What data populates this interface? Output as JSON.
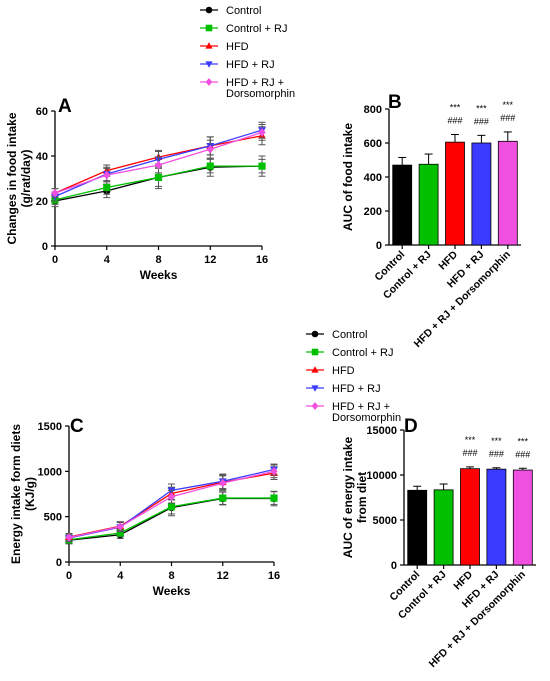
{
  "colors": {
    "control": "#000000",
    "control_rj": "#00c000",
    "hfd": "#ff0000",
    "hfd_rj": "#3b3bff",
    "hfd_rj_dorso": "#f050e0"
  },
  "legend_entries": [
    "Control",
    "Control + RJ",
    "HFD",
    "HFD + RJ",
    "HFD + RJ +",
    "Dorsomorphin"
  ],
  "chart_data": [
    {
      "panel": "A",
      "type": "line",
      "xlabel": "Weeks",
      "ylabel_lines": [
        "Changes in food intake",
        "(g/rat/day)"
      ],
      "x": [
        0,
        4,
        8,
        12,
        16
      ],
      "xlim": [
        0,
        16
      ],
      "ylim": [
        0,
        60
      ],
      "xticks": [
        "0",
        "4",
        "8",
        "12",
        "16"
      ],
      "yticks": [
        "0",
        "20",
        "40",
        "60"
      ],
      "series": [
        {
          "name": "Control",
          "values": [
            20,
            24.5,
            30.5,
            35,
            35.5
          ],
          "err": [
            2.5,
            3,
            5,
            4,
            4.5
          ]
        },
        {
          "name": "Control + RJ",
          "values": [
            20.5,
            26,
            30.5,
            35.5,
            35.5
          ],
          "err": [
            2,
            3,
            4,
            3,
            3
          ]
        },
        {
          "name": "HFD",
          "values": [
            23.5,
            33.5,
            39.5,
            44.5,
            49
          ],
          "err": [
            2,
            2.5,
            3,
            4,
            4
          ]
        },
        {
          "name": "HFD + RJ",
          "values": [
            22,
            32,
            38.5,
            44.5,
            51.5
          ],
          "err": [
            2,
            3,
            3.5,
            4,
            3.5
          ]
        },
        {
          "name": "HFD + RJ + Dorsomorphin",
          "values": [
            23.5,
            31.5,
            36,
            43,
            50.5
          ],
          "err": [
            2,
            3,
            3.5,
            4,
            3.5
          ]
        }
      ]
    },
    {
      "panel": "B",
      "type": "bar",
      "ylabel_lines": [
        "AUC of food intake"
      ],
      "categories": [
        "Control",
        "Control + RJ",
        "HFD",
        "HFD + RJ",
        "HFD + RJ + Dorsomorphin"
      ],
      "values": [
        470,
        475,
        605,
        600,
        610
      ],
      "err": [
        45,
        60,
        45,
        45,
        55
      ],
      "ylim": [
        0,
        800
      ],
      "yticks": [
        "0",
        "200",
        "400",
        "600",
        "800"
      ],
      "annotations": [
        {
          "category": "HFD",
          "lines": [
            "***",
            "###"
          ]
        },
        {
          "category": "HFD + RJ",
          "lines": [
            "***",
            "###"
          ]
        },
        {
          "category": "HFD + RJ + Dorsomorphin",
          "lines": [
            "***",
            "###"
          ]
        }
      ]
    },
    {
      "panel": "C",
      "type": "line",
      "xlabel": "Weeks",
      "ylabel_lines": [
        "Energy intake form diets",
        "(KJ/g)"
      ],
      "x": [
        0,
        4,
        8,
        12,
        16
      ],
      "xlim": [
        0,
        16
      ],
      "ylim": [
        0,
        1500
      ],
      "xticks": [
        "0",
        "4",
        "8",
        "12",
        "16"
      ],
      "yticks": [
        "0",
        "500",
        "1000",
        "1500"
      ],
      "series": [
        {
          "name": "Control",
          "values": [
            240,
            300,
            600,
            700,
            700
          ],
          "err": [
            40,
            40,
            90,
            70,
            80
          ]
        },
        {
          "name": "Control + RJ",
          "values": [
            245,
            320,
            610,
            705,
            705
          ],
          "err": [
            40,
            40,
            80,
            70,
            70
          ]
        },
        {
          "name": "HFD",
          "values": [
            275,
            395,
            755,
            880,
            980
          ],
          "err": [
            40,
            50,
            70,
            80,
            70
          ]
        },
        {
          "name": "HFD + RJ",
          "values": [
            265,
            385,
            790,
            890,
            1020
          ],
          "err": [
            40,
            50,
            70,
            80,
            60
          ]
        },
        {
          "name": "HFD + RJ + Dorsomorphin",
          "values": [
            270,
            390,
            720,
            870,
            1000
          ],
          "err": [
            40,
            50,
            70,
            80,
            70
          ]
        }
      ]
    },
    {
      "panel": "D",
      "type": "bar",
      "ylabel_lines": [
        "AUC of energy intake",
        "from diet"
      ],
      "categories": [
        "Control",
        "Control + RJ",
        "HFD",
        "HFD + RJ",
        "HFD + RJ + Dorsomorphin"
      ],
      "values": [
        8300,
        8350,
        10700,
        10650,
        10550
      ],
      "err": [
        450,
        650,
        200,
        150,
        200
      ],
      "ylim": [
        0,
        15000
      ],
      "yticks": [
        "0",
        "5000",
        "10000",
        "15000"
      ],
      "annotations": [
        {
          "category": "HFD",
          "lines": [
            "***",
            "###"
          ]
        },
        {
          "category": "HFD + RJ",
          "lines": [
            "***",
            "###"
          ]
        },
        {
          "category": "HFD + RJ + Dorsomorphin",
          "lines": [
            "***",
            "###"
          ]
        }
      ]
    }
  ]
}
